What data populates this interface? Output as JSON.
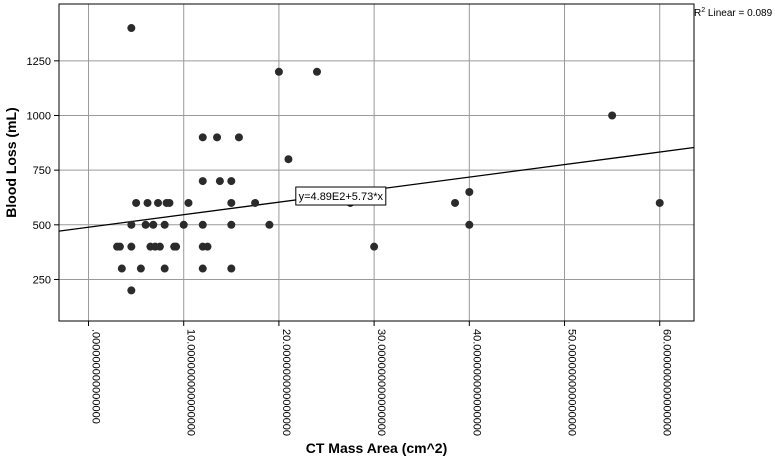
{
  "chart_data": {
    "type": "scatter",
    "title": "",
    "xlabel": "CT Mass Area (cm^2)",
    "ylabel": "Blood Loss (mL)",
    "xlim": [
      -3.1,
      63.6
    ],
    "ylim": [
      60,
      1510
    ],
    "x_ticks": [
      0,
      10,
      20,
      30,
      40,
      50,
      60
    ],
    "x_tick_labels": [
      ".000000000000000",
      "10.000000000000000",
      "20.000000000000000",
      "30.000000000000000",
      "40.000000000000000",
      "50.000000000000000",
      "60.000000000000000"
    ],
    "y_ticks": [
      250,
      500,
      750,
      1000,
      1250
    ],
    "y_tick_labels": [
      "250",
      "500",
      "750",
      "1000",
      "1250"
    ],
    "grid": true,
    "fit_line": {
      "intercept": 489,
      "slope": 5.73,
      "label": "y=4.89E2+5.73*x"
    },
    "r2_label": {
      "prefix": "R",
      "sup": "2",
      "suffix": " Linear = 0.089"
    },
    "colors": {
      "points": "#2b2b2b",
      "grid": "#9a9a9a",
      "line": "#000000"
    },
    "points": [
      [
        4.5,
        1400
      ],
      [
        3.0,
        400
      ],
      [
        3.3,
        400
      ],
      [
        3.5,
        300
      ],
      [
        4.5,
        500
      ],
      [
        4.5,
        400
      ],
      [
        4.5,
        200
      ],
      [
        5.0,
        600
      ],
      [
        5.5,
        300
      ],
      [
        6.0,
        500
      ],
      [
        6.2,
        600
      ],
      [
        6.5,
        400
      ],
      [
        6.8,
        500
      ],
      [
        7.0,
        400
      ],
      [
        7.3,
        600
      ],
      [
        7.5,
        400
      ],
      [
        8.0,
        300
      ],
      [
        8.0,
        500
      ],
      [
        8.2,
        600
      ],
      [
        8.5,
        600
      ],
      [
        9.0,
        400
      ],
      [
        9.2,
        400
      ],
      [
        10.0,
        500
      ],
      [
        10.5,
        600
      ],
      [
        12.0,
        900
      ],
      [
        12.0,
        700
      ],
      [
        12.0,
        500
      ],
      [
        12.0,
        400
      ],
      [
        12.0,
        300
      ],
      [
        12.5,
        400
      ],
      [
        13.5,
        900
      ],
      [
        13.8,
        700
      ],
      [
        15.0,
        700
      ],
      [
        15.0,
        600
      ],
      [
        15.0,
        500
      ],
      [
        15.0,
        300
      ],
      [
        15.8,
        900
      ],
      [
        17.5,
        600
      ],
      [
        19.0,
        500
      ],
      [
        20.0,
        1200
      ],
      [
        21.0,
        800
      ],
      [
        24.0,
        1200
      ],
      [
        27.5,
        600
      ],
      [
        30.0,
        400
      ],
      [
        38.5,
        600
      ],
      [
        40.0,
        650
      ],
      [
        40.0,
        500
      ],
      [
        55.0,
        1000
      ],
      [
        60.0,
        600
      ]
    ]
  }
}
